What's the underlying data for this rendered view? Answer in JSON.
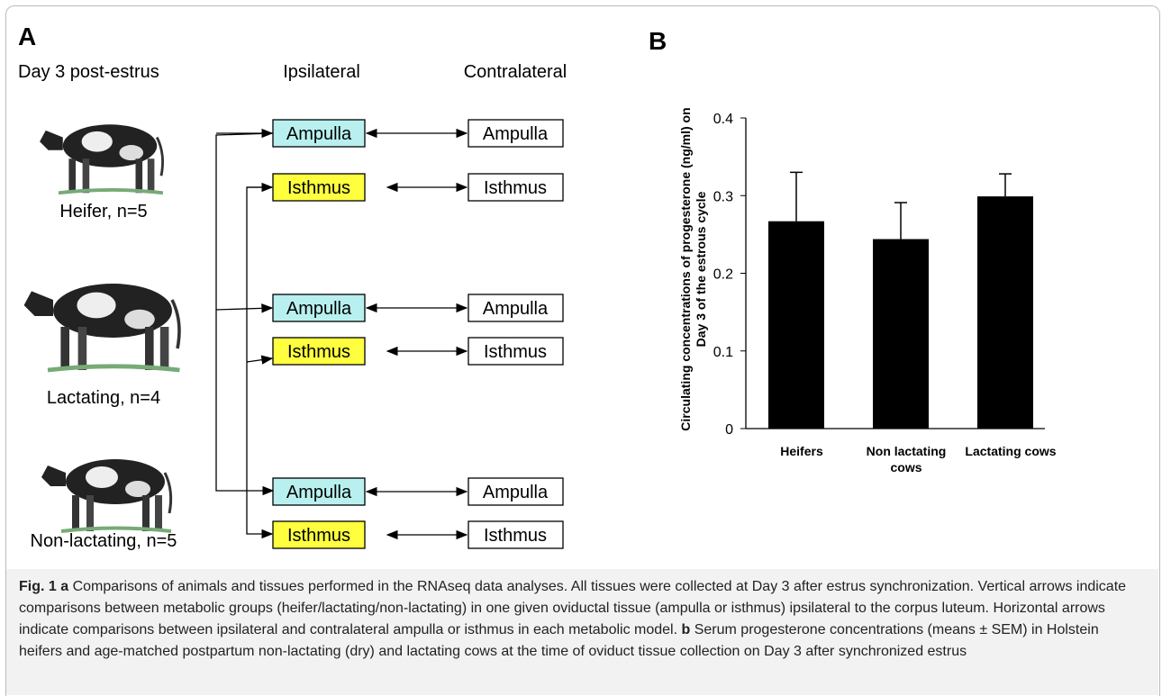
{
  "panel_a": {
    "label": "A",
    "header": "Day 3 post-estrus",
    "ipsilateral": "Ipsilateral",
    "contralateral": "Contralateral",
    "groups": [
      {
        "animal": "Heifer, n=5",
        "rows": [
          {
            "ipsi": "Ampulla",
            "contra": "Ampulla"
          },
          {
            "ipsi": "Isthmus",
            "contra": "Isthmus"
          }
        ]
      },
      {
        "animal": "Lactating, n=4",
        "rows": [
          {
            "ipsi": "Ampulla",
            "contra": "Ampulla"
          },
          {
            "ipsi": "Isthmus",
            "contra": "Isthmus"
          }
        ]
      },
      {
        "animal": "Non-lactating, n=5",
        "rows": [
          {
            "ipsi": "Ampulla",
            "contra": "Ampulla"
          },
          {
            "ipsi": "Isthmus",
            "contra": "Isthmus"
          }
        ]
      }
    ]
  },
  "chart_data": {
    "type": "bar",
    "label": "B",
    "ylabel": "Circulating concentrations of progesterone (ng/ml) on Day 3 of the estrous cycle",
    "categories": [
      "Heifers",
      "Non lactating cows",
      "Lactating cows"
    ],
    "values": [
      0.267,
      0.244,
      0.299
    ],
    "errors": [
      0.063,
      0.047,
      0.029
    ],
    "color": "#000000",
    "ylim": [
      0,
      0.4
    ],
    "yticks": [
      0,
      0.1,
      0.2,
      0.3,
      0.4
    ]
  },
  "caption": {
    "label": "Fig. 1",
    "parts": [
      {
        "letter": "a",
        "text": "Comparisons of animals and tissues performed in the RNAseq data analyses. All tissues were collected at Day 3 after estrus synchronization. Vertical arrows indicate comparisons between metabolic groups (heifer/lactating/non-lactating) in one given oviductal tissue (ampulla or isthmus) ipsilateral to the corpus luteum. Horizontal arrows indicate comparisons between ipsilateral and contralateral ampulla or isthmus in each metabolic model."
      },
      {
        "letter": "b",
        "text": "Serum progesterone concentrations (means ± SEM) in Holstein heifers and age-matched postpartum non-lactating (dry) and lactating cows at the time of oviduct tissue collection on Day 3 after synchronized estrus"
      }
    ]
  }
}
